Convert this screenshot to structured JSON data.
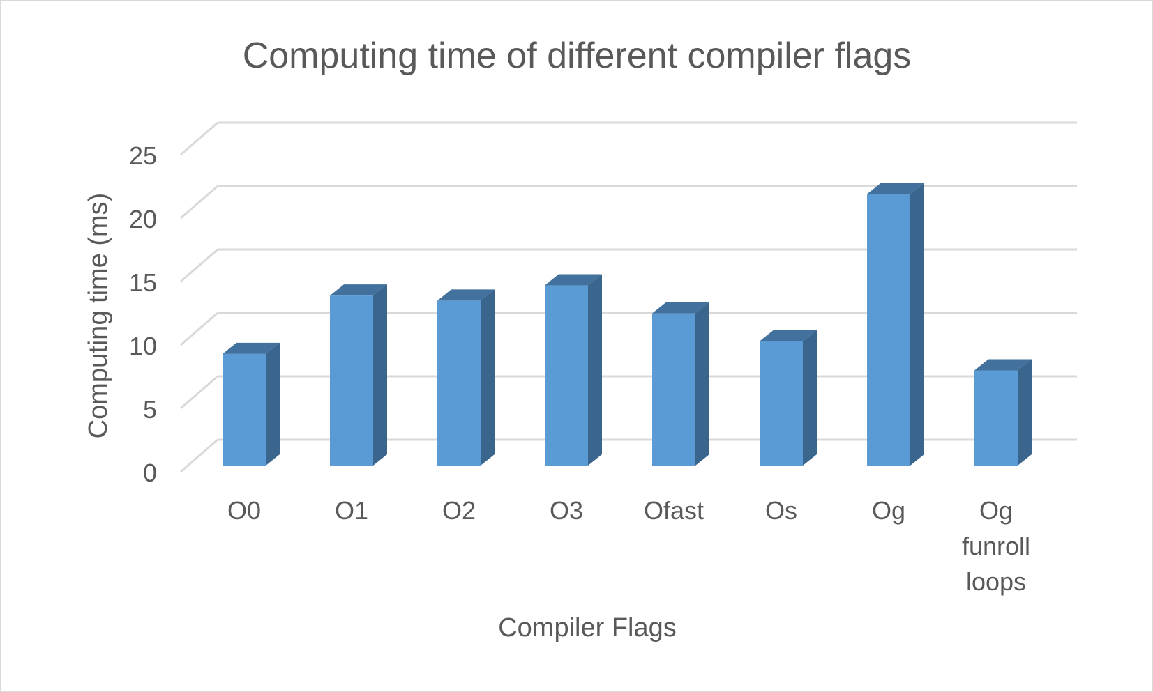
{
  "chart_data": {
    "type": "bar",
    "style": "3d-column",
    "title": "Computing time of different compiler flags",
    "xlabel": "Compiler Flags",
    "ylabel": "Computing time (ms)",
    "categories": [
      [
        "O0"
      ],
      [
        "O1"
      ],
      [
        "O2"
      ],
      [
        "O3"
      ],
      [
        "Ofast"
      ],
      [
        "Os"
      ],
      [
        "Og"
      ],
      [
        "Og",
        "funroll",
        "loops"
      ]
    ],
    "values": [
      8.8,
      13.4,
      13.0,
      14.2,
      12.0,
      9.8,
      21.4,
      7.5
    ],
    "ylim": [
      0,
      25
    ],
    "yticks": [
      "0",
      "5",
      "10",
      "15",
      "20",
      "25"
    ],
    "grid": true,
    "legend": "none",
    "colors": {
      "bar_front": "#5b9bd5",
      "bar_top": "#41719c",
      "bar_side": "#3a658c",
      "gridline": "#d9d9d9",
      "text": "#595959"
    }
  }
}
